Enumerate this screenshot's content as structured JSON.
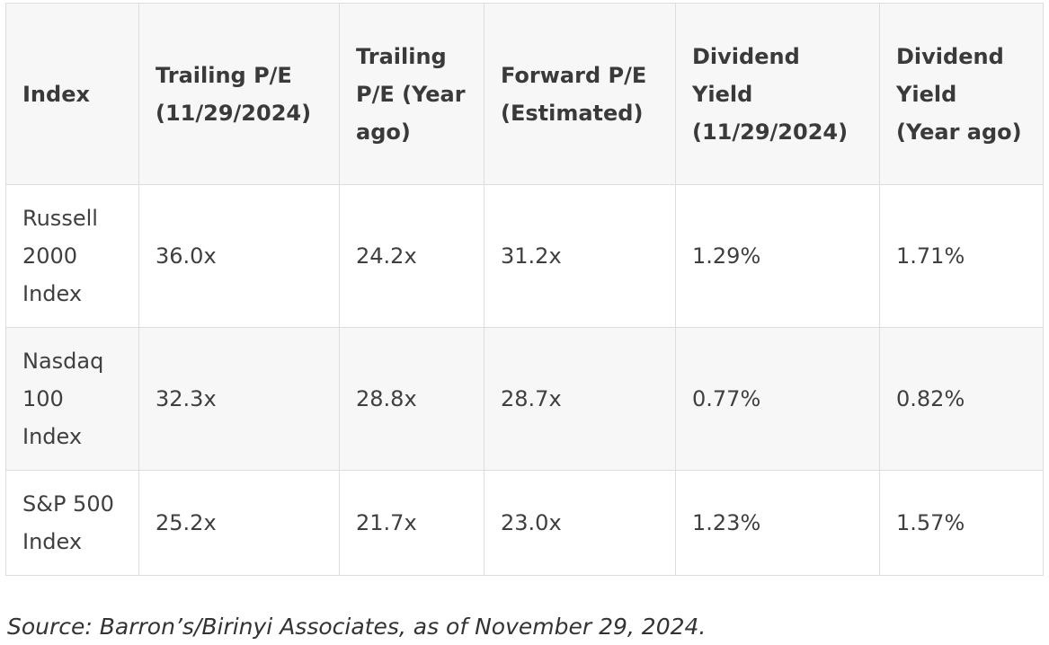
{
  "table": {
    "headers": [
      "Index",
      "Trailing P/E (11/29/2024)",
      "Trailing P/E (Year ago)",
      "Forward P/E (Estimated)",
      "Dividend Yield (11/29/2024)",
      "Dividend Yield (Year ago)"
    ],
    "rows": [
      [
        "Russell 2000 Index",
        "36.0x",
        "24.2x",
        "31.2x",
        "1.29%",
        "1.71%"
      ],
      [
        "Nasdaq 100 Index",
        "32.3x",
        "28.8x",
        "28.7x",
        "0.77%",
        "0.82%"
      ],
      [
        "S&P 500 Index",
        "25.2x",
        "21.7x",
        "23.0x",
        "1.23%",
        "1.57%"
      ]
    ]
  },
  "source_note": "Source: Barron’s/Birinyi Associates, as of November 29, 2024."
}
